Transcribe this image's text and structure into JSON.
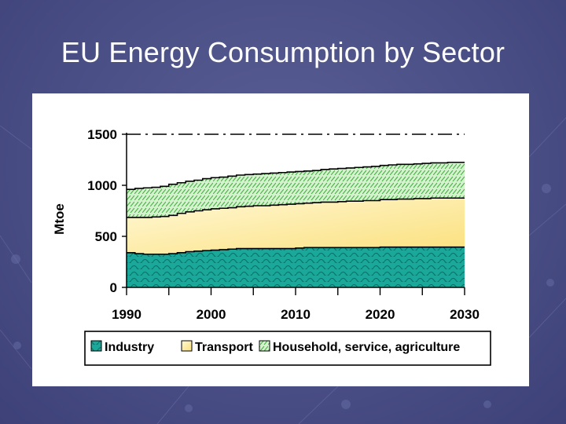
{
  "slide": {
    "title": "EU Energy Consumption by Sector"
  },
  "colors": {
    "industry": "#1aa89a",
    "transport": "#fce38a",
    "household": "#c9eec3",
    "frame": "#000000"
  },
  "chart_data": {
    "type": "area",
    "stacked": true,
    "title": "",
    "xlabel": "",
    "ylabel": "Mtoe",
    "x": [
      1990,
      1991,
      1992,
      1993,
      1994,
      1995,
      1996,
      1997,
      1998,
      1999,
      2000,
      2001,
      2002,
      2003,
      2004,
      2005,
      2006,
      2007,
      2008,
      2009,
      2010,
      2011,
      2012,
      2013,
      2014,
      2015,
      2016,
      2017,
      2018,
      2019,
      2020,
      2021,
      2022,
      2023,
      2024,
      2025,
      2026,
      2027,
      2028,
      2029,
      2030
    ],
    "xticks": [
      1990,
      2000,
      2010,
      2020,
      2030
    ],
    "yticks": [
      0,
      500,
      1000,
      1500
    ],
    "xlim": [
      1990,
      2030
    ],
    "ylim": [
      0,
      1500
    ],
    "series": [
      {
        "name": "Industry",
        "values": [
          340,
          330,
          325,
          325,
          325,
          330,
          340,
          350,
          355,
          360,
          365,
          370,
          375,
          380,
          380,
          380,
          380,
          380,
          380,
          380,
          385,
          390,
          390,
          390,
          390,
          390,
          390,
          390,
          390,
          390,
          395,
          395,
          395,
          395,
          395,
          395,
          395,
          395,
          395,
          395,
          395
        ]
      },
      {
        "name": "Transport",
        "values": [
          345,
          355,
          360,
          365,
          370,
          375,
          385,
          390,
          395,
          400,
          405,
          405,
          405,
          410,
          415,
          420,
          420,
          425,
          430,
          435,
          435,
          435,
          440,
          445,
          445,
          450,
          455,
          455,
          460,
          460,
          465,
          465,
          470,
          470,
          475,
          475,
          480,
          480,
          480,
          480,
          480
        ]
      },
      {
        "name": "Household, service, agriculture",
        "values": [
          275,
          285,
          290,
          290,
          295,
          305,
          300,
          300,
          300,
          305,
          305,
          305,
          310,
          310,
          310,
          310,
          315,
          315,
          315,
          315,
          315,
          315,
          315,
          320,
          325,
          325,
          325,
          330,
          330,
          335,
          335,
          340,
          340,
          340,
          340,
          345,
          345,
          345,
          350,
          350,
          350
        ]
      }
    ],
    "reference_line": {
      "value": 1500,
      "style": "dash-dot"
    },
    "legend_position": "bottom",
    "grid": false
  }
}
